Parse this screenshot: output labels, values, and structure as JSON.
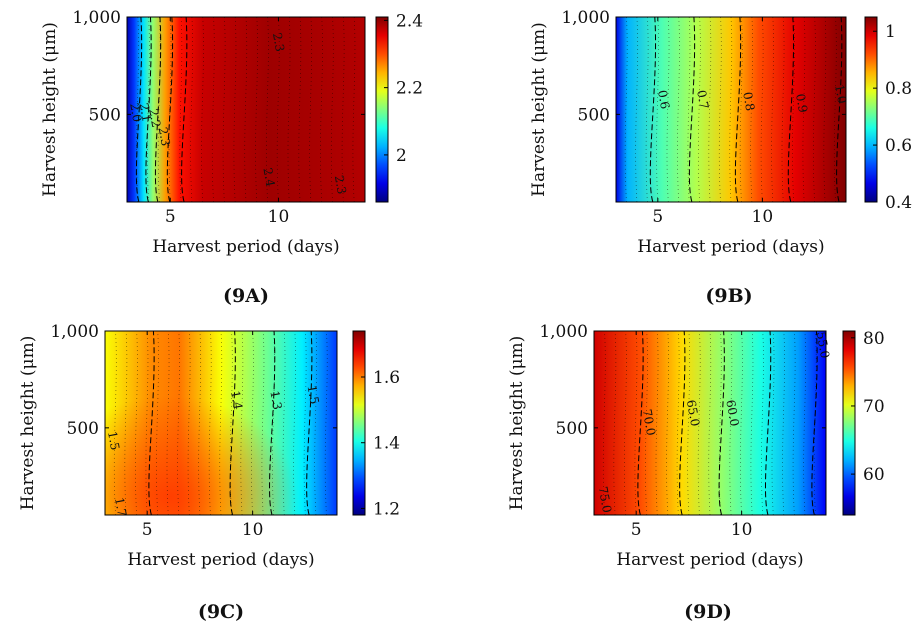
{
  "chart_data": [
    {
      "id": "9A",
      "type": "heatmap",
      "caption": "(9A)",
      "xlabel": "Harvest period (days)",
      "ylabel": "Harvest height (μm)",
      "xlim": [
        3,
        14
      ],
      "ylim": [
        50,
        1000
      ],
      "x_ticks": [
        5,
        10
      ],
      "x_tick_labels": [
        "5",
        "10"
      ],
      "y_ticks": [
        500,
        1000
      ],
      "y_tick_labels": [
        "500",
        "1,000"
      ],
      "colorbar": {
        "min": 1.86,
        "max": 2.41,
        "ticks": [
          2,
          2.2,
          2.4
        ],
        "tick_labels": [
          "2",
          "2.2",
          "2.4"
        ]
      },
      "contour_labels": [
        "2.3",
        "2.0",
        "2.1",
        "2.2",
        "2.3",
        "2.4",
        "2.3"
      ],
      "grid": false
    },
    {
      "id": "9B",
      "type": "heatmap",
      "caption": "(9B)",
      "xlabel": "Harvest period (days)",
      "ylabel": "Harvest height (μm)",
      "xlim": [
        3,
        14
      ],
      "ylim": [
        50,
        1000
      ],
      "x_ticks": [
        5,
        10
      ],
      "x_tick_labels": [
        "5",
        "10"
      ],
      "y_ticks": [
        500,
        1000
      ],
      "y_tick_labels": [
        "500",
        "1,000"
      ],
      "colorbar": {
        "min": 0.4,
        "max": 1.05,
        "ticks": [
          0.4,
          0.6,
          0.8,
          1
        ],
        "tick_labels": [
          "0.4",
          "0.6",
          "0.8",
          "1"
        ]
      },
      "contour_labels": [
        "0.6",
        "0.7",
        "0.8",
        "0.9",
        "1.0"
      ],
      "grid": false
    },
    {
      "id": "9C",
      "type": "heatmap",
      "caption": "(9C)",
      "xlabel": "Harvest period (days)",
      "ylabel": "Harvest height (μm)",
      "xlim": [
        3,
        14
      ],
      "ylim": [
        50,
        1000
      ],
      "x_ticks": [
        5,
        10
      ],
      "x_tick_labels": [
        "5",
        "10"
      ],
      "y_ticks": [
        500,
        1000
      ],
      "y_tick_labels": [
        "500",
        "1,000"
      ],
      "colorbar": {
        "min": 1.18,
        "max": 1.74,
        "ticks": [
          1.2,
          1.4,
          1.6
        ],
        "tick_labels": [
          "1.2",
          "1.4",
          "1.6"
        ]
      },
      "contour_labels": [
        "1.5",
        "1.4",
        "1.3",
        "1.5",
        "1.7"
      ],
      "grid": false
    },
    {
      "id": "9D",
      "type": "heatmap",
      "caption": "(9D)",
      "xlabel": "Harvest period (days)",
      "ylabel": "Harvest height (μm)",
      "xlim": [
        3,
        14
      ],
      "ylim": [
        50,
        1000
      ],
      "x_ticks": [
        5,
        10
      ],
      "x_tick_labels": [
        "5",
        "10"
      ],
      "y_ticks": [
        500,
        1000
      ],
      "y_tick_labels": [
        "500",
        "1,000"
      ],
      "colorbar": {
        "min": 54,
        "max": 81,
        "ticks": [
          60,
          70,
          80
        ],
        "tick_labels": [
          "60",
          "70",
          "80"
        ]
      },
      "contour_labels": [
        "70.0",
        "65.0",
        "60.0",
        "75.0",
        "55.0"
      ],
      "grid": false
    }
  ]
}
